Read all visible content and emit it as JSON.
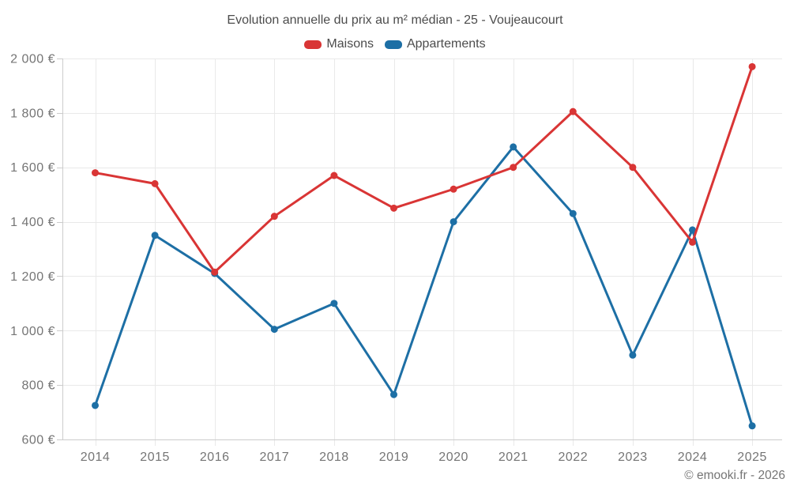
{
  "title": "Evolution annuelle du prix au m² médian - 25 - Voujeaucourt",
  "footer": "© emooki.fr - 2026",
  "legend": [
    {
      "label": "Maisons",
      "color": "#d93535"
    },
    {
      "label": "Appartements",
      "color": "#1d6fa5"
    }
  ],
  "colors": {
    "maisons": "#d93535",
    "appartements": "#1d6fa5",
    "gridline": "#e9e9e9",
    "axis": "#cccccc",
    "tick_text": "#757575",
    "title_text": "#4c4c4c"
  },
  "chart_data": {
    "type": "line",
    "title": "Evolution annuelle du prix au m² médian - 25 - Voujeaucourt",
    "categories": [
      "2014",
      "2015",
      "2016",
      "2017",
      "2018",
      "2019",
      "2020",
      "2021",
      "2022",
      "2023",
      "2024",
      "2025"
    ],
    "series": [
      {
        "name": "Maisons",
        "color": "#d93535",
        "values": [
          1580,
          1540,
          1215,
          1420,
          1570,
          1450,
          1520,
          1600,
          1805,
          1600,
          1325,
          1970
        ]
      },
      {
        "name": "Appartements",
        "color": "#1d6fa5",
        "values": [
          725,
          1350,
          1210,
          1005,
          1100,
          765,
          1400,
          1675,
          1430,
          910,
          1370,
          650
        ]
      }
    ],
    "xlabel": "",
    "ylabel": "",
    "ylim": [
      600,
      2000
    ],
    "yticks": {
      "values": [
        600,
        800,
        1000,
        1200,
        1400,
        1600,
        1800,
        2000
      ],
      "labels": [
        "600 €",
        "800 €",
        "1 000 €",
        "1 200 €",
        "1 400 €",
        "1 600 €",
        "1 800 €",
        "2 000 €"
      ]
    },
    "grid": true,
    "legend_position": "top"
  }
}
